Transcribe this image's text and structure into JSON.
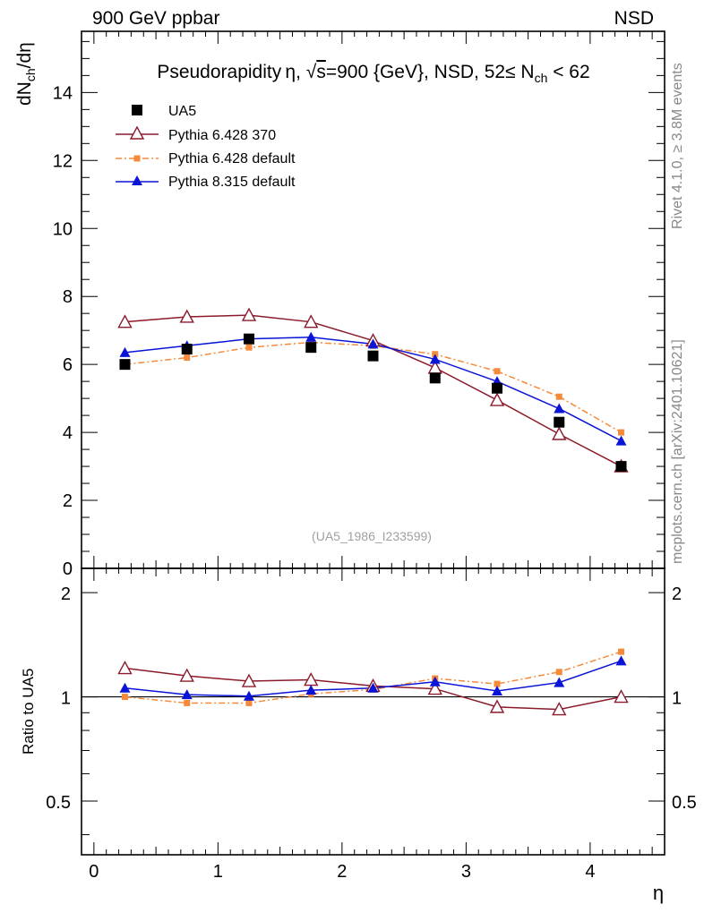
{
  "header": {
    "left": "900 GeV ppbar",
    "right": "NSD"
  },
  "side_labels": {
    "rivet": "Rivet 4.1.0, ≥ 3.8M events",
    "mcplots": "mcplots.cern.ch [arXiv:2401.10621]"
  },
  "watermark": "(UA5_1986_I233599)",
  "chart_data": [
    {
      "type": "line",
      "title": "Pseudorapidity η, √s=900 {GeV}, NSD, 52≤ N_ch < 62",
      "title_parts": {
        "pre": "Pseudorapidity η, ",
        "sqrt": "√",
        "s": "s",
        "mid": "=900 {GeV}, NSD, 52≤ N",
        "sub": "ch",
        "post": " < 62"
      },
      "ylabel": "dN_ch/dη",
      "ylabel_parts": {
        "pre": "dN",
        "sub": "ch",
        "post": "/dη"
      },
      "xlim": [
        -0.1,
        4.6
      ],
      "ylim": [
        0,
        15.8
      ],
      "yticks": [
        2,
        4,
        6,
        8,
        10,
        12,
        14
      ],
      "y_zero_label": "0",
      "x": [
        0.25,
        0.75,
        1.25,
        1.75,
        2.25,
        2.75,
        3.25,
        3.75,
        4.25
      ],
      "series": [
        {
          "name": "UA5",
          "color": "#000000",
          "marker": "square",
          "line": "none",
          "values": [
            6.0,
            6.45,
            6.75,
            6.5,
            6.25,
            5.6,
            5.3,
            4.3,
            3.0
          ]
        },
        {
          "name": "Pythia 6.428 370",
          "color": "#8b1a2a",
          "marker": "triangle-open",
          "line": "solid",
          "values": [
            7.25,
            7.4,
            7.45,
            7.25,
            6.7,
            5.9,
            4.95,
            3.95,
            3.0
          ]
        },
        {
          "name": "Pythia 6.428 default",
          "color": "#f58a3a",
          "marker": "square-small",
          "line": "dashdot",
          "values": [
            6.0,
            6.2,
            6.5,
            6.65,
            6.55,
            6.3,
            5.8,
            5.05,
            4.0
          ]
        },
        {
          "name": "Pythia 8.315 default",
          "color": "#0a14d6",
          "marker": "triangle",
          "line": "solid",
          "values": [
            6.35,
            6.55,
            6.75,
            6.8,
            6.6,
            6.15,
            5.5,
            4.7,
            3.75
          ]
        }
      ]
    },
    {
      "type": "line",
      "title": "",
      "ylabel": "Ratio to UA5",
      "xlabel": "η",
      "xlim": [
        -0.1,
        4.6
      ],
      "ylim": [
        0.35,
        2.35
      ],
      "ylog": true,
      "yticks": [
        0.5,
        1,
        2
      ],
      "ytick_labels": [
        "0.5",
        "1",
        "2"
      ],
      "xticks": [
        0,
        1,
        2,
        3,
        4
      ],
      "xtick_labels": [
        "0",
        "1",
        "2",
        "3",
        "4"
      ],
      "reference": 1.0,
      "x": [
        0.25,
        0.75,
        1.25,
        1.75,
        2.25,
        2.75,
        3.25,
        3.75,
        4.25
      ],
      "series": [
        {
          "name": "Pythia 6.428 370",
          "color": "#8b1a2a",
          "marker": "triangle-open",
          "line": "solid",
          "values": [
            1.21,
            1.15,
            1.11,
            1.12,
            1.075,
            1.055,
            0.935,
            0.92,
            1.0
          ]
        },
        {
          "name": "Pythia 6.428 default",
          "color": "#f58a3a",
          "marker": "square-small",
          "line": "dashdot",
          "values": [
            1.0,
            0.96,
            0.96,
            1.02,
            1.05,
            1.13,
            1.09,
            1.18,
            1.35
          ]
        },
        {
          "name": "Pythia 8.315 default",
          "color": "#0a14d6",
          "marker": "triangle",
          "line": "solid",
          "values": [
            1.06,
            1.015,
            1.005,
            1.045,
            1.06,
            1.105,
            1.04,
            1.1,
            1.27
          ]
        }
      ]
    }
  ]
}
